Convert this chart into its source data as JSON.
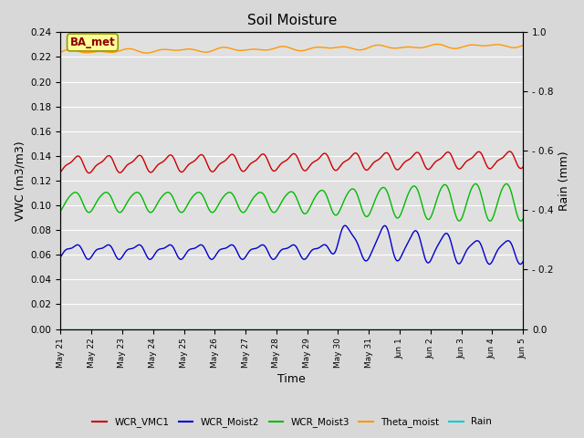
{
  "title": "Soil Moisture",
  "xlabel": "Time",
  "ylabel_left": "VWC (m3/m3)",
  "ylabel_right": "Rain (mm)",
  "ylim_left": [
    0.0,
    0.24
  ],
  "ylim_right": [
    0.0,
    1.0
  ],
  "yticks_left": [
    0.0,
    0.02,
    0.04,
    0.06,
    0.08,
    0.1,
    0.12,
    0.14,
    0.16,
    0.18,
    0.2,
    0.22,
    0.24
  ],
  "yticks_right_pos": [
    0.0,
    0.2,
    0.4,
    0.6,
    0.8,
    1.0
  ],
  "yticks_right_labels": [
    "0.0",
    "- 0.2",
    "- 0.4",
    "- 0.6",
    "- 0.8",
    "1.0"
  ],
  "background_color": "#d8d8d8",
  "axes_bg_color": "#e0e0e0",
  "grid_color": "#ffffff",
  "annotation_text": "BA_met",
  "annotation_bg": "#ffff99",
  "annotation_border": "#999900",
  "colors": {
    "WCR_VMC1": "#cc0000",
    "WCR_Moist2": "#0000cc",
    "WCR_Moist3": "#00bb00",
    "Theta_moist": "#ff9900",
    "Rain": "#00cccc"
  },
  "x_tick_labels": [
    "May 21",
    "May 22",
    "May 23",
    "May 24",
    "May 25",
    "May 26",
    "May 27",
    "May 28",
    "May 29",
    "May 30",
    "May 31",
    "Jun 1",
    "Jun 2",
    "Jun 3",
    "Jun 4",
    "Jun 5"
  ]
}
